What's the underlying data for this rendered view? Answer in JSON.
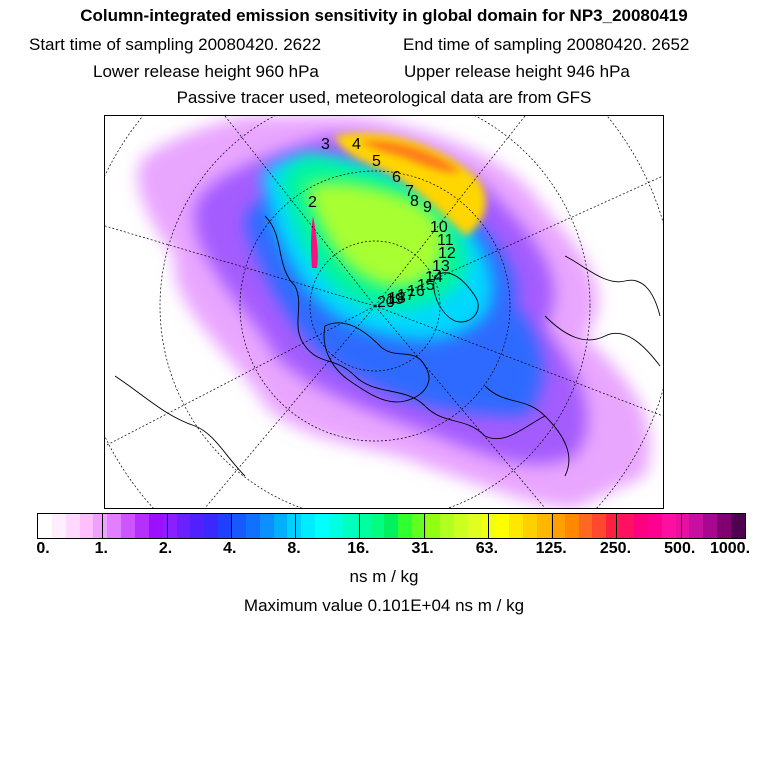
{
  "header": {
    "title": "Column-integrated emission sensitivity in global domain for NP3_20080419",
    "start_time": "Start time of sampling 20080420.  2622",
    "end_time": "End time of sampling 20080420.  2652",
    "lower_height": "Lower release height  960 hPa",
    "upper_height": "Upper release height  946 hPa",
    "tracer_note": "Passive tracer used, meteorological data are from GFS"
  },
  "map": {
    "projection": "polar stereographic",
    "trajectory_labels": [
      "2",
      "3",
      "4",
      "5",
      "6",
      "7",
      "8",
      "9",
      "10",
      "11",
      "12",
      "13",
      "14",
      "15",
      "16",
      "17",
      "18",
      "19",
      "20"
    ]
  },
  "colorbar": {
    "tick_labels": [
      "0.",
      "1.",
      "2.",
      "4.",
      "8.",
      "16.",
      "31.",
      "63.",
      "125.",
      "250.",
      "500.",
      "1000."
    ],
    "colors": [
      "#ffffff",
      "#ffeeff",
      "#ffd8ff",
      "#ffbfff",
      "#f0a0ff",
      "#e080ff",
      "#cc55ff",
      "#b530ff",
      "#9a10ff",
      "#8a20ff",
      "#6b20ff",
      "#5020ff",
      "#3a28ff",
      "#2040ff",
      "#1858ff",
      "#1070ff",
      "#0a90ff",
      "#00b0ff",
      "#00d0ff",
      "#00ecff",
      "#00ffff",
      "#00ffe0",
      "#00ffc0",
      "#00ffa0",
      "#00ff80",
      "#00f060",
      "#30ff30",
      "#60ff20",
      "#90ff10",
      "#b0ff20",
      "#ccff20",
      "#e0ff20",
      "#f0ff10",
      "#ffff00",
      "#ffe800",
      "#ffd000",
      "#ffb800",
      "#ffa000",
      "#ff8800",
      "#ff6820",
      "#ff4830",
      "#ff2040",
      "#ff1060",
      "#ff0080",
      "#ff0090",
      "#ff10a0",
      "#e810a0",
      "#c810a0",
      "#a80890",
      "#800070",
      "#500050"
    ],
    "unit": "ns m / kg"
  },
  "max_value": "Maximum value  0.101E+04 ns m / kg"
}
